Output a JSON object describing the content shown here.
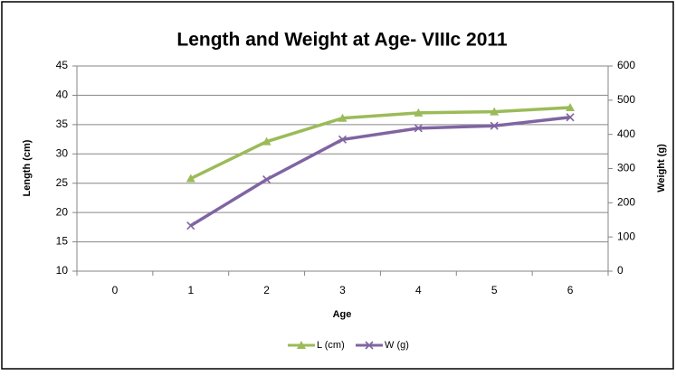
{
  "chart_data": {
    "type": "line",
    "title": "Length and Weight at  Age- VIIIc 2011",
    "x_label": "Age",
    "y_label": "Length (cm)",
    "y2_label": "Weight (g)",
    "categories": [
      "0",
      "1",
      "2",
      "3",
      "4",
      "5",
      "6"
    ],
    "series": [
      {
        "name": "L (cm)",
        "color": "#9bbb59",
        "marker": "triangle",
        "values": [
          null,
          25.8,
          32.1,
          36.1,
          37.0,
          37.2,
          37.9
        ]
      },
      {
        "name": "W (g)",
        "color": "#8064a2",
        "marker": "x",
        "axis": "y2",
        "values": [
          null,
          133,
          268,
          385,
          418,
          425,
          450
        ]
      }
    ],
    "ylim": [
      10,
      45
    ],
    "yticks": [
      10,
      15,
      20,
      25,
      30,
      35,
      40,
      45
    ],
    "y2lim": [
      0,
      600
    ],
    "y2ticks": [
      0,
      100,
      200,
      300,
      400,
      500,
      600
    ],
    "grid": true,
    "legend": "bottom"
  }
}
